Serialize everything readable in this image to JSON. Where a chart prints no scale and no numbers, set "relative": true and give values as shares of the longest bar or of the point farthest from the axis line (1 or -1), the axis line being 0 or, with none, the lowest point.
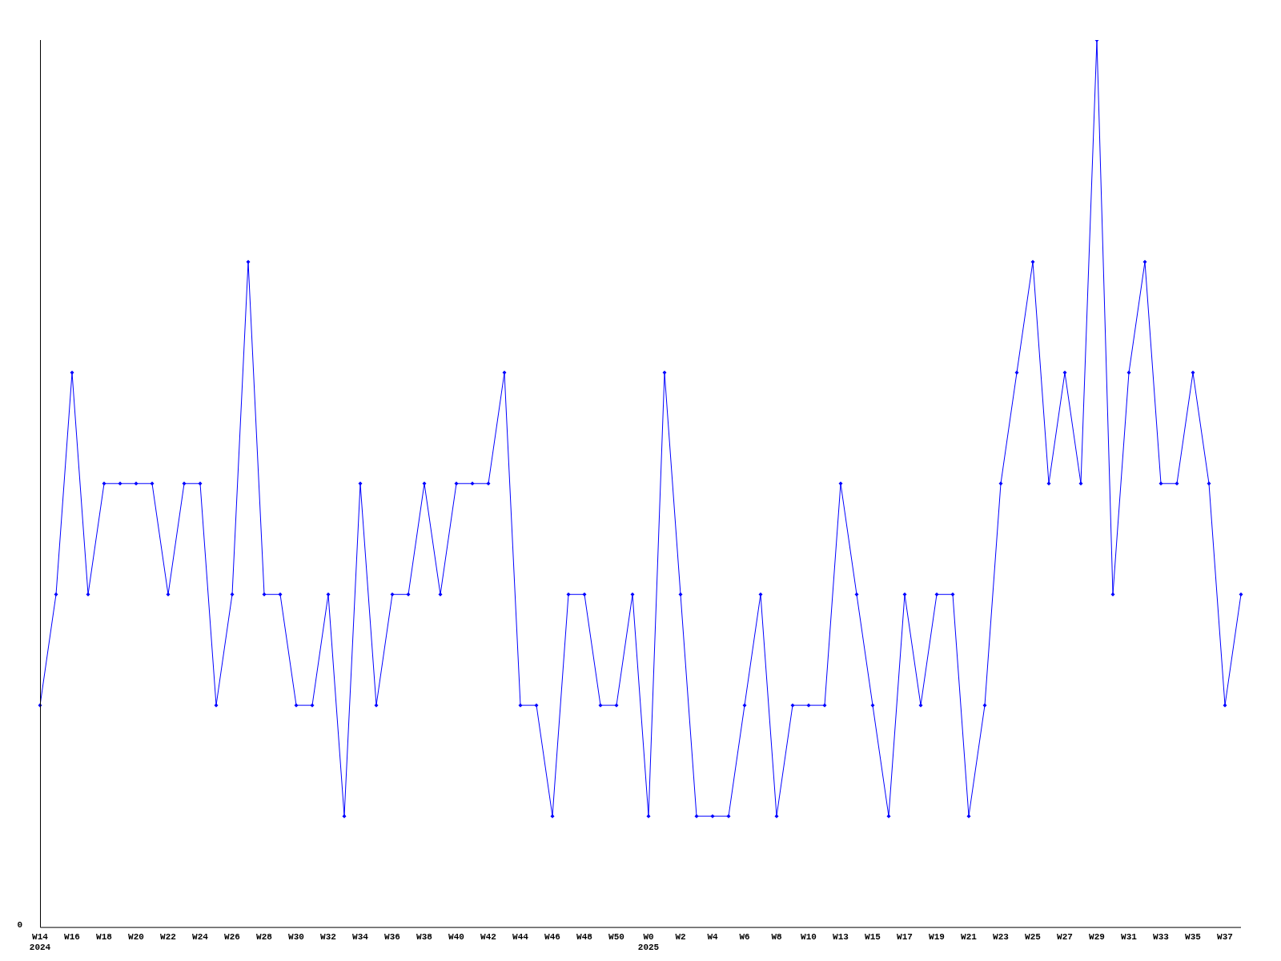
{
  "chart_data": {
    "type": "line",
    "relative": true,
    "color": "#0000ff",
    "marker": "diamond",
    "grid": false,
    "legend": false,
    "annotations": [
      "0"
    ],
    "categories": [
      "W14\n2024",
      null,
      "W16",
      null,
      "W18",
      null,
      "W20",
      null,
      "W22",
      null,
      "W24",
      null,
      "W26",
      null,
      "W28",
      null,
      "W30",
      null,
      "W32",
      null,
      "W34",
      null,
      "W36",
      null,
      "W38",
      null,
      "W40",
      null,
      "W42",
      null,
      "W44",
      null,
      "W46",
      null,
      "W48",
      null,
      "W50",
      null,
      "W0\n2025",
      null,
      "W2",
      null,
      "W4",
      null,
      "W6",
      null,
      "W8",
      null,
      "W10",
      null,
      "W13",
      null,
      "W15",
      null,
      "W17",
      null,
      "W19",
      null,
      "W21",
      null,
      "W23",
      null,
      "W25",
      null,
      "W27",
      null,
      "W29",
      null,
      "W31",
      null,
      "W33",
      null,
      "W35",
      null,
      "W37",
      null
    ],
    "values": [
      0.25,
      0.375,
      0.625,
      0.375,
      0.5,
      0.5,
      0.5,
      0.5,
      0.375,
      0.5,
      0.5,
      0.25,
      0.375,
      0.75,
      0.375,
      0.375,
      0.25,
      0.25,
      0.375,
      0.125,
      0.5,
      0.25,
      0.375,
      0.375,
      0.5,
      0.375,
      0.5,
      0.5,
      0.5,
      0.625,
      0.25,
      0.25,
      0.125,
      0.375,
      0.375,
      0.25,
      0.25,
      0.375,
      0.125,
      0.625,
      0.375,
      0.125,
      0.125,
      0.125,
      0.25,
      0.375,
      0.125,
      0.25,
      0.25,
      0.25,
      0.5,
      0.375,
      0.25,
      0.125,
      0.375,
      0.25,
      0.375,
      0.375,
      0.125,
      0.25,
      0.5,
      0.625,
      0.75,
      0.5,
      0.625,
      0.5,
      1,
      0.375,
      0.625,
      0.75,
      0.5,
      0.5,
      0.625,
      0.5,
      0.25,
      0.375
    ]
  }
}
